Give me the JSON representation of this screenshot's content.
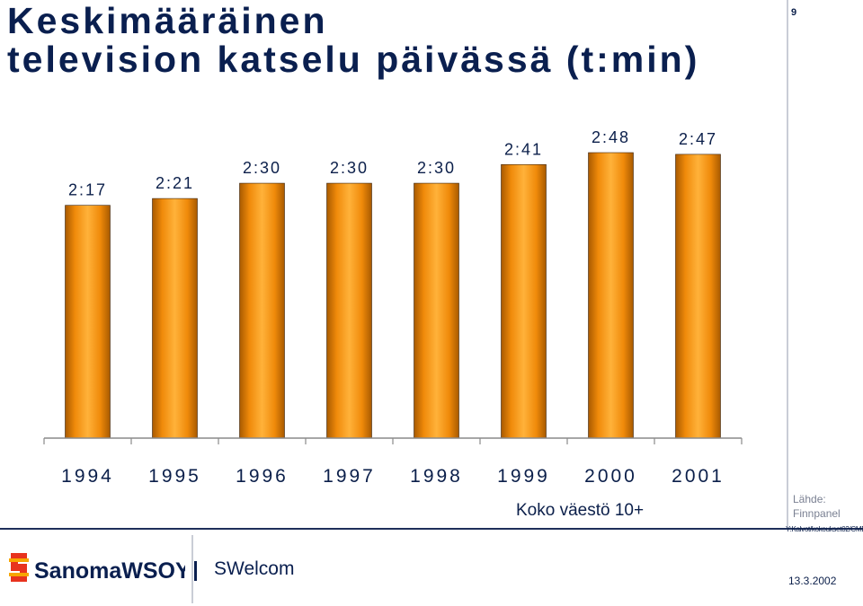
{
  "header": {
    "title_line1": "Keskimääräinen",
    "title_line2": "television katselu päivässä (t:min)",
    "page_number": "9"
  },
  "chart_data": {
    "type": "bar",
    "title": "Keskimääräinen television katselu päivässä (t:min)",
    "categories": [
      "1994",
      "1995",
      "1996",
      "1997",
      "1998",
      "1999",
      "2000",
      "2001"
    ],
    "values": [
      137,
      141,
      150,
      150,
      150,
      161,
      168,
      167
    ],
    "data_labels": [
      "2:17",
      "2:21",
      "2:30",
      "2:30",
      "2:30",
      "2:41",
      "2:48",
      "2:47"
    ],
    "xlabel": "Koko väestö 10+",
    "ylabel": "",
    "ylim": [
      0,
      168
    ],
    "grid": false,
    "bar_color": "#f59a12"
  },
  "footer": {
    "source_label": "Lähde:",
    "source_name": "Finnpanel",
    "file_path": "Y:Kalvot/kokoukset02/CMD",
    "company": "SanomaWSOY",
    "brand": "SWelcom",
    "date": "13.3.2002"
  }
}
